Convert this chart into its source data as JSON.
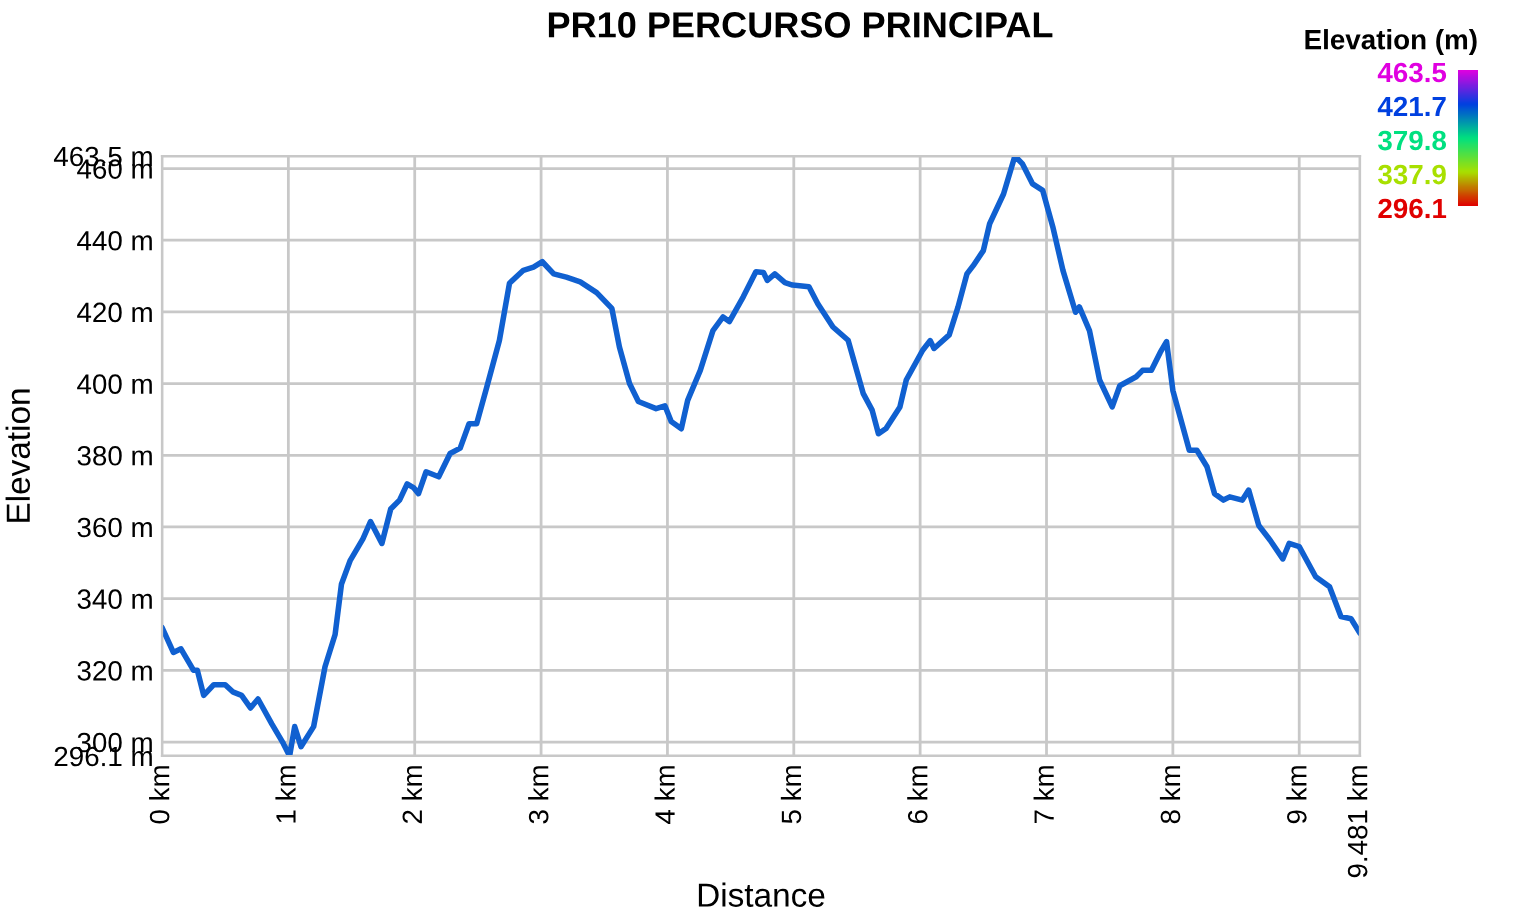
{
  "chart_data": {
    "type": "line",
    "title": "PR10 PERCURSO PRINCIPAL",
    "xlabel": "Distance",
    "ylabel": "Elevation",
    "clabel": "Elevation (m)",
    "clim": [
      296.1,
      463.5
    ],
    "cticks": [
      463.5,
      421.7,
      379.8,
      337.9,
      296.1
    ],
    "colors": [
      "#e000e0",
      "#0040e0",
      "#00e080",
      "#a8e000",
      "#e00000"
    ],
    "xlim": [
      0,
      9.481
    ],
    "ylim": [
      296.1,
      463.5
    ],
    "xticks": [
      {
        "value": 0,
        "label": "0 km"
      },
      {
        "value": 1,
        "label": "1 km"
      },
      {
        "value": 2,
        "label": "2 km"
      },
      {
        "value": 3,
        "label": "3 km"
      },
      {
        "value": 4,
        "label": "4 km"
      },
      {
        "value": 5,
        "label": "5 km"
      },
      {
        "value": 6,
        "label": "6 km"
      },
      {
        "value": 7,
        "label": "7 km"
      },
      {
        "value": 8,
        "label": "8 km"
      },
      {
        "value": 9,
        "label": "9 km"
      },
      {
        "value": 9.481,
        "label": "9.481 km"
      }
    ],
    "yticks": [
      {
        "value": 296.1,
        "label": "296.1 m"
      },
      {
        "value": 300,
        "label": "300 m"
      },
      {
        "value": 320,
        "label": "320 m"
      },
      {
        "value": 340,
        "label": "340 m"
      },
      {
        "value": 360,
        "label": "360 m"
      },
      {
        "value": 380,
        "label": "380 m"
      },
      {
        "value": 400,
        "label": "400 m"
      },
      {
        "value": 420,
        "label": "420 m"
      },
      {
        "value": 440,
        "label": "440 m"
      },
      {
        "value": 460,
        "label": "460 m"
      },
      {
        "value": 463.5,
        "label": "463.5 m"
      }
    ],
    "grid": true,
    "marker": "none",
    "series": [
      {
        "color": "#1060d0",
        "x": [
          0,
          0.09,
          0.15,
          0.25,
          0.28,
          0.33,
          0.41,
          0.5,
          0.56,
          0.63,
          0.7,
          0.76,
          0.87,
          0.96,
          1.01,
          1.05,
          1.1,
          1.2,
          1.29,
          1.37,
          1.42,
          1.49,
          1.59,
          1.65,
          1.74,
          1.81,
          1.88,
          1.94,
          1.99,
          2.03,
          2.09,
          2.19,
          2.28,
          2.36,
          2.43,
          2.49,
          2.57,
          2.67,
          2.75,
          2.86,
          2.94,
          3.01,
          3.1,
          3.2,
          3.31,
          3.44,
          3.56,
          3.62,
          3.7,
          3.77,
          3.91,
          3.98,
          4.03,
          4.11,
          4.16,
          4.26,
          4.36,
          4.44,
          4.49,
          4.6,
          4.7,
          4.76,
          4.79,
          4.85,
          4.93,
          4.99,
          5.12,
          5.19,
          5.31,
          5.43,
          5.55,
          5.62,
          5.67,
          5.73,
          5.84,
          5.89,
          6.02,
          6.08,
          6.11,
          6.23,
          6.3,
          6.37,
          6.42,
          6.5,
          6.55,
          6.66,
          6.75,
          6.81,
          6.89,
          6.97,
          7.05,
          7.13,
          7.23,
          7.26,
          7.34,
          7.42,
          7.52,
          7.58,
          7.71,
          7.76,
          7.83,
          7.9,
          7.95,
          8.0,
          8.13,
          8.19,
          8.27,
          8.33,
          8.4,
          8.45,
          8.55,
          8.6,
          8.68,
          8.77,
          8.87,
          8.92,
          9.0,
          9.13,
          9.24,
          9.33,
          9.41,
          9.481
        ],
        "values": [
          332,
          325,
          326,
          320,
          320,
          313,
          316,
          316,
          314,
          313,
          309.5,
          312,
          305,
          299.6,
          296.1,
          304.3,
          298.7,
          304.3,
          321,
          330,
          344,
          350.7,
          356.7,
          361.5,
          355.4,
          365,
          367.5,
          372,
          371,
          369.3,
          375.4,
          374,
          380.5,
          382,
          388.8,
          388.8,
          399,
          412,
          428,
          431.6,
          432.5,
          434,
          430.6,
          429.7,
          428.4,
          425.4,
          421,
          410.2,
          400,
          395,
          393,
          393.8,
          389.4,
          387.4,
          395.3,
          403.7,
          414.8,
          418.6,
          417.3,
          424.2,
          431.2,
          431,
          428.8,
          430.6,
          428.2,
          427.5,
          427,
          422.3,
          415.8,
          412.1,
          397.2,
          392.6,
          386,
          387.5,
          393.5,
          401,
          409.3,
          412,
          409.8,
          413.6,
          421.4,
          430.6,
          432.9,
          437.1,
          444.6,
          452.9,
          463.5,
          461.3,
          455.7,
          453.9,
          443.7,
          431.6,
          419.9,
          421.4,
          414.8,
          401,
          393.5,
          399.4,
          401.9,
          403.7,
          403.7,
          408.7,
          411.7,
          398.1,
          381.4,
          381.4,
          376.8,
          369.3,
          367.5,
          368.4,
          367.5,
          370.3,
          360.4,
          356.3,
          351.1,
          355.4,
          354.5,
          346.1,
          343.3,
          335,
          334.4,
          330.3
        ]
      }
    ]
  }
}
